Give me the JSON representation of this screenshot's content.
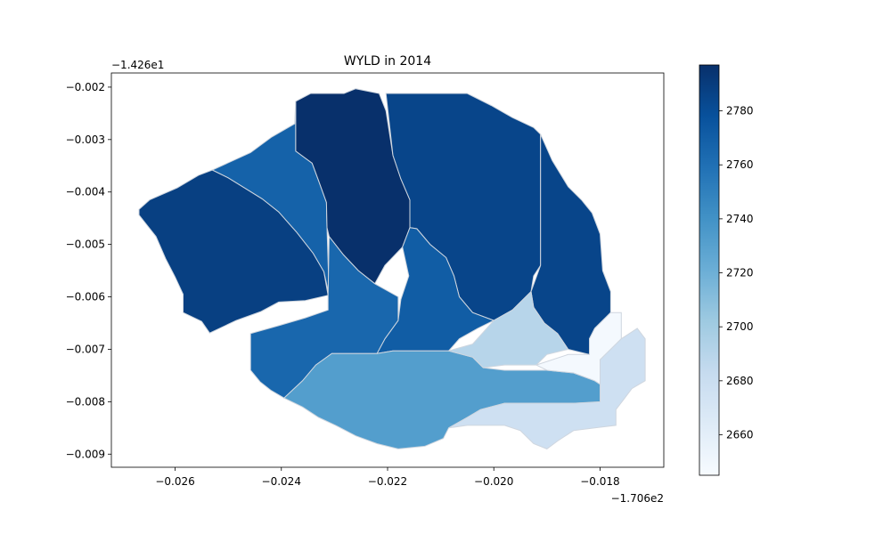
{
  "chart_data": {
    "type": "choropleth",
    "title": "WYLD in 2014",
    "x_offset_label": "−1.706e2",
    "y_offset_label": "−1.426e1",
    "xlim": [
      -0.0272,
      -0.0168
    ],
    "ylim": [
      -0.00925,
      -0.00173
    ],
    "x_ticks": [
      -0.026,
      -0.024,
      -0.022,
      -0.02,
      -0.018
    ],
    "x_tick_labels": [
      "−0.026",
      "−0.024",
      "−0.022",
      "−0.020",
      "−0.018"
    ],
    "y_ticks": [
      -0.002,
      -0.003,
      -0.004,
      -0.005,
      -0.006,
      -0.007,
      -0.008,
      -0.009
    ],
    "y_tick_labels": [
      "−0.002",
      "−0.003",
      "−0.004",
      "−0.005",
      "−0.006",
      "−0.007",
      "−0.008",
      "−0.009"
    ],
    "colorbar": {
      "cmap": "Blues",
      "vmin": 2645,
      "vmax": 2797,
      "ticks": [
        2660,
        2680,
        2700,
        2720,
        2740,
        2760,
        2780
      ],
      "tick_labels": [
        "2660",
        "2680",
        "2700",
        "2720",
        "2740",
        "2760",
        "2780"
      ]
    },
    "regions": [
      {
        "value": 2788,
        "polygon": [
          [
            -0.02668,
            -0.00433
          ],
          [
            -0.02648,
            -0.00415
          ],
          [
            -0.02596,
            -0.00392
          ],
          [
            -0.02556,
            -0.00368
          ],
          [
            -0.0253,
            -0.00358
          ],
          [
            -0.025,
            -0.00373
          ],
          [
            -0.02468,
            -0.00393
          ],
          [
            -0.02436,
            -0.00413
          ],
          [
            -0.02405,
            -0.00438
          ],
          [
            -0.02371,
            -0.00477
          ],
          [
            -0.0234,
            -0.00517
          ],
          [
            -0.0232,
            -0.00552
          ],
          [
            -0.02312,
            -0.00597
          ],
          [
            -0.02355,
            -0.00607
          ],
          [
            -0.02405,
            -0.0061
          ],
          [
            -0.02438,
            -0.00628
          ],
          [
            -0.02485,
            -0.00645
          ],
          [
            -0.02535,
            -0.00669
          ],
          [
            -0.0255,
            -0.00647
          ],
          [
            -0.02585,
            -0.0063
          ],
          [
            -0.02585,
            -0.00595
          ],
          [
            -0.026,
            -0.00562
          ],
          [
            -0.02618,
            -0.00527
          ],
          [
            -0.02636,
            -0.00485
          ],
          [
            -0.02668,
            -0.00444
          ]
        ]
      },
      {
        "value": 2768,
        "polygon": [
          [
            -0.0253,
            -0.00358
          ],
          [
            -0.02458,
            -0.00325
          ],
          [
            -0.02418,
            -0.00295
          ],
          [
            -0.02375,
            -0.0027
          ],
          [
            -0.02373,
            -0.00227
          ],
          [
            -0.02373,
            -0.00322
          ],
          [
            -0.02342,
            -0.00345
          ],
          [
            -0.0233,
            -0.00378
          ],
          [
            -0.02315,
            -0.0042
          ],
          [
            -0.02314,
            -0.00468
          ],
          [
            -0.0231,
            -0.00597
          ],
          [
            -0.0232,
            -0.00552
          ],
          [
            -0.0234,
            -0.00517
          ],
          [
            -0.02371,
            -0.00477
          ],
          [
            -0.02405,
            -0.00438
          ],
          [
            -0.02436,
            -0.00413
          ],
          [
            -0.02468,
            -0.00393
          ],
          [
            -0.025,
            -0.00373
          ]
        ]
      },
      {
        "value": 2797,
        "polygon": [
          [
            -0.02373,
            -0.00227
          ],
          [
            -0.02345,
            -0.00212
          ],
          [
            -0.02282,
            -0.00212
          ],
          [
            -0.0226,
            -0.00203
          ],
          [
            -0.02216,
            -0.00212
          ],
          [
            -0.02203,
            -0.00245
          ],
          [
            -0.0219,
            -0.0033
          ],
          [
            -0.02175,
            -0.00375
          ],
          [
            -0.02158,
            -0.00415
          ],
          [
            -0.02158,
            -0.00468
          ],
          [
            -0.02172,
            -0.00505
          ],
          [
            -0.02205,
            -0.0054
          ],
          [
            -0.02224,
            -0.00575
          ],
          [
            -0.02255,
            -0.0055
          ],
          [
            -0.02283,
            -0.0052
          ],
          [
            -0.0231,
            -0.00485
          ],
          [
            -0.02314,
            -0.00468
          ],
          [
            -0.02315,
            -0.0042
          ],
          [
            -0.0233,
            -0.00378
          ],
          [
            -0.02342,
            -0.00345
          ],
          [
            -0.02373,
            -0.00322
          ]
        ]
      },
      {
        "value": 2785,
        "polygon": [
          [
            -0.02203,
            -0.00212
          ],
          [
            -0.0205,
            -0.00212
          ],
          [
            -0.02005,
            -0.00235
          ],
          [
            -0.01965,
            -0.00258
          ],
          [
            -0.01925,
            -0.00277
          ],
          [
            -0.01912,
            -0.0029
          ],
          [
            -0.01912,
            -0.0054
          ],
          [
            -0.01925,
            -0.0056
          ],
          [
            -0.0193,
            -0.0059
          ],
          [
            -0.01965,
            -0.00625
          ],
          [
            -0.02,
            -0.00645
          ],
          [
            -0.0204,
            -0.0063
          ],
          [
            -0.02065,
            -0.006
          ],
          [
            -0.02075,
            -0.0056
          ],
          [
            -0.0209,
            -0.00525
          ],
          [
            -0.0212,
            -0.005
          ],
          [
            -0.02145,
            -0.0047
          ],
          [
            -0.02158,
            -0.00468
          ],
          [
            -0.02158,
            -0.00415
          ],
          [
            -0.02175,
            -0.00375
          ],
          [
            -0.0219,
            -0.0033
          ]
        ]
      },
      {
        "value": 2785,
        "polygon": [
          [
            -0.01912,
            -0.0029
          ],
          [
            -0.0189,
            -0.0034
          ],
          [
            -0.0186,
            -0.0039
          ],
          [
            -0.01835,
            -0.00415
          ],
          [
            -0.01815,
            -0.0044
          ],
          [
            -0.018,
            -0.0048
          ],
          [
            -0.01795,
            -0.0055
          ],
          [
            -0.0178,
            -0.0059
          ],
          [
            -0.0178,
            -0.0063
          ],
          [
            -0.0181,
            -0.0066
          ],
          [
            -0.0182,
            -0.0068
          ],
          [
            -0.0182,
            -0.0071
          ],
          [
            -0.0186,
            -0.007
          ],
          [
            -0.0188,
            -0.0067
          ],
          [
            -0.01905,
            -0.0065
          ],
          [
            -0.01925,
            -0.0062
          ],
          [
            -0.0193,
            -0.0059
          ],
          [
            -0.01912,
            -0.0054
          ]
        ]
      },
      {
        "value": 2771,
        "polygon": [
          [
            -0.02158,
            -0.00468
          ],
          [
            -0.02145,
            -0.0047
          ],
          [
            -0.0212,
            -0.005
          ],
          [
            -0.0209,
            -0.00525
          ],
          [
            -0.02075,
            -0.0056
          ],
          [
            -0.02065,
            -0.006
          ],
          [
            -0.0204,
            -0.0063
          ],
          [
            -0.02,
            -0.00645
          ],
          [
            -0.0203,
            -0.0066
          ],
          [
            -0.02065,
            -0.0068
          ],
          [
            -0.02085,
            -0.00703
          ],
          [
            -0.02135,
            -0.00703
          ],
          [
            -0.0219,
            -0.00703
          ],
          [
            -0.0222,
            -0.00708
          ],
          [
            -0.02205,
            -0.0068
          ],
          [
            -0.0218,
            -0.00645
          ],
          [
            -0.02175,
            -0.00605
          ],
          [
            -0.0216,
            -0.0056
          ],
          [
            -0.02172,
            -0.00505
          ]
        ]
      },
      {
        "value": 2765,
        "polygon": [
          [
            -0.0231,
            -0.00485
          ],
          [
            -0.02283,
            -0.0052
          ],
          [
            -0.02255,
            -0.0055
          ],
          [
            -0.02224,
            -0.00575
          ],
          [
            -0.0218,
            -0.006
          ],
          [
            -0.0218,
            -0.00645
          ],
          [
            -0.02205,
            -0.0068
          ],
          [
            -0.0222,
            -0.00708
          ],
          [
            -0.02305,
            -0.00708
          ],
          [
            -0.02335,
            -0.0073
          ],
          [
            -0.0236,
            -0.0076
          ],
          [
            -0.02395,
            -0.00793
          ],
          [
            -0.0242,
            -0.00778
          ],
          [
            -0.0244,
            -0.00762
          ],
          [
            -0.02458,
            -0.0074
          ],
          [
            -0.02458,
            -0.0067
          ],
          [
            -0.02405,
            -0.00655
          ],
          [
            -0.02355,
            -0.0064
          ],
          [
            -0.02312,
            -0.00625
          ],
          [
            -0.02312,
            -0.00597
          ]
        ]
      },
      {
        "value": 2732,
        "polygon": [
          [
            -0.02305,
            -0.00708
          ],
          [
            -0.0222,
            -0.00708
          ],
          [
            -0.0219,
            -0.00703
          ],
          [
            -0.02085,
            -0.00703
          ],
          [
            -0.0204,
            -0.00715
          ],
          [
            -0.0202,
            -0.00735
          ],
          [
            -0.0198,
            -0.0074
          ],
          [
            -0.019,
            -0.0074
          ],
          [
            -0.0185,
            -0.00745
          ],
          [
            -0.0181,
            -0.0076
          ],
          [
            -0.0178,
            -0.0078
          ],
          [
            -0.0178,
            -0.008
          ],
          [
            -0.0185,
            -0.00803
          ],
          [
            -0.0198,
            -0.00803
          ],
          [
            -0.02025,
            -0.00815
          ],
          [
            -0.0205,
            -0.0083
          ],
          [
            -0.02085,
            -0.0085
          ],
          [
            -0.02095,
            -0.0087
          ],
          [
            -0.0213,
            -0.00885
          ],
          [
            -0.0218,
            -0.0089
          ],
          [
            -0.0222,
            -0.0088
          ],
          [
            -0.0226,
            -0.00865
          ],
          [
            -0.02298,
            -0.00845
          ],
          [
            -0.0233,
            -0.0083
          ],
          [
            -0.0236,
            -0.0081
          ],
          [
            -0.02395,
            -0.00793
          ],
          [
            -0.0236,
            -0.0076
          ],
          [
            -0.02335,
            -0.0073
          ]
        ]
      },
      {
        "value": 2690,
        "polygon": [
          [
            -0.02085,
            -0.00703
          ],
          [
            -0.0204,
            -0.0069
          ],
          [
            -0.02,
            -0.00645
          ],
          [
            -0.01965,
            -0.00625
          ],
          [
            -0.0193,
            -0.0059
          ],
          [
            -0.01925,
            -0.0062
          ],
          [
            -0.01905,
            -0.0065
          ],
          [
            -0.0188,
            -0.0067
          ],
          [
            -0.0186,
            -0.007
          ],
          [
            -0.019,
            -0.0071
          ],
          [
            -0.0192,
            -0.0073
          ],
          [
            -0.0198,
            -0.0073
          ],
          [
            -0.0202,
            -0.00735
          ],
          [
            -0.0204,
            -0.00715
          ]
        ]
      },
      {
        "value": 2647,
        "polygon": [
          [
            -0.0192,
            -0.0073
          ],
          [
            -0.0186,
            -0.0071
          ],
          [
            -0.0182,
            -0.0071
          ],
          [
            -0.0182,
            -0.0068
          ],
          [
            -0.0181,
            -0.0066
          ],
          [
            -0.0178,
            -0.0063
          ],
          [
            -0.0176,
            -0.0063
          ],
          [
            -0.0176,
            -0.0068
          ],
          [
            -0.018,
            -0.0072
          ],
          [
            -0.018,
            -0.008
          ],
          [
            -0.0178,
            -0.008
          ],
          [
            -0.0178,
            -0.0078
          ],
          [
            -0.0181,
            -0.0076
          ],
          [
            -0.0185,
            -0.00745
          ],
          [
            -0.019,
            -0.0074
          ]
        ]
      },
      {
        "value": 2677,
        "polygon": [
          [
            -0.0176,
            -0.0068
          ],
          [
            -0.0173,
            -0.0066
          ],
          [
            -0.01715,
            -0.0068
          ],
          [
            -0.01715,
            -0.0076
          ],
          [
            -0.0174,
            -0.00775
          ],
          [
            -0.01755,
            -0.00795
          ],
          [
            -0.0177,
            -0.00815
          ],
          [
            -0.0177,
            -0.00845
          ],
          [
            -0.0181,
            -0.0085
          ],
          [
            -0.0185,
            -0.00855
          ],
          [
            -0.0188,
            -0.00875
          ],
          [
            -0.019,
            -0.0089
          ],
          [
            -0.01925,
            -0.0088
          ],
          [
            -0.0195,
            -0.00855
          ],
          [
            -0.0198,
            -0.00845
          ],
          [
            -0.0205,
            -0.00845
          ],
          [
            -0.02085,
            -0.0085
          ],
          [
            -0.0205,
            -0.0083
          ],
          [
            -0.02025,
            -0.00815
          ],
          [
            -0.0198,
            -0.00803
          ],
          [
            -0.0185,
            -0.00803
          ],
          [
            -0.018,
            -0.008
          ],
          [
            -0.018,
            -0.0072
          ]
        ]
      }
    ]
  }
}
